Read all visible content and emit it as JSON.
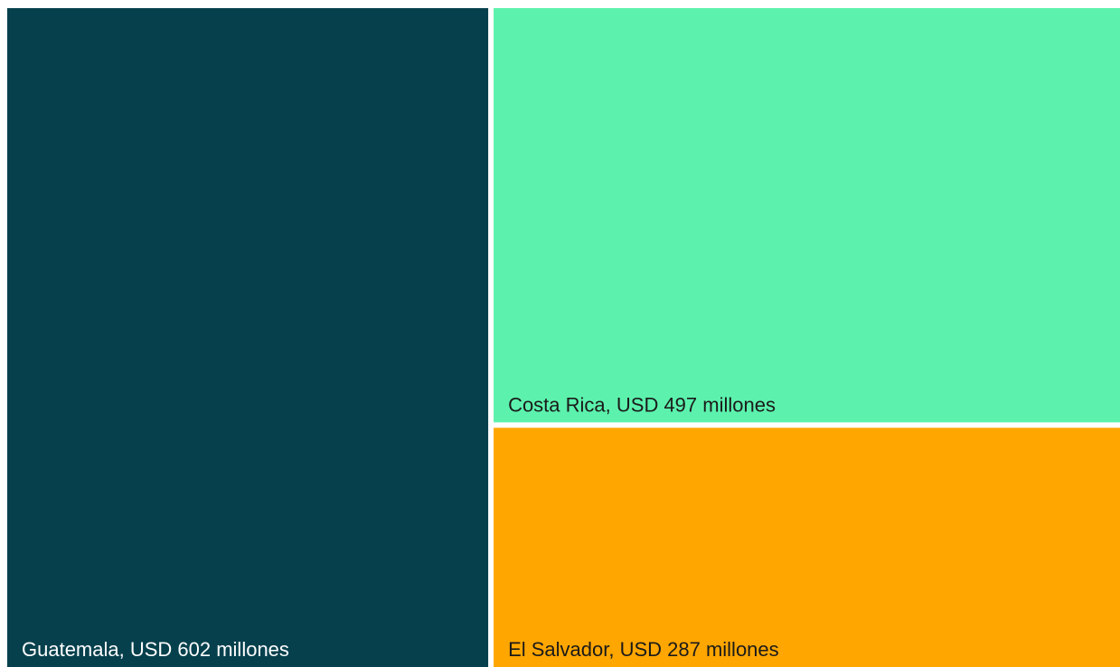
{
  "chart_data": {
    "type": "treemap",
    "title": "",
    "unit": "USD millones",
    "items": [
      {
        "label": "Guatemala, USD 602 millones",
        "name": "Guatemala",
        "value": 602,
        "color": "#06404d",
        "text_color": "#ffffff"
      },
      {
        "label": "Costa Rica, USD 497 millones",
        "name": "Costa Rica",
        "value": 497,
        "color": "#5cf2ad",
        "text_color": "#1a1a1a"
      },
      {
        "label": "El Salvador, USD 287 millones",
        "name": "El Salvador",
        "value": 287,
        "color": "#ffa600",
        "text_color": "#1a1a1a"
      }
    ]
  }
}
